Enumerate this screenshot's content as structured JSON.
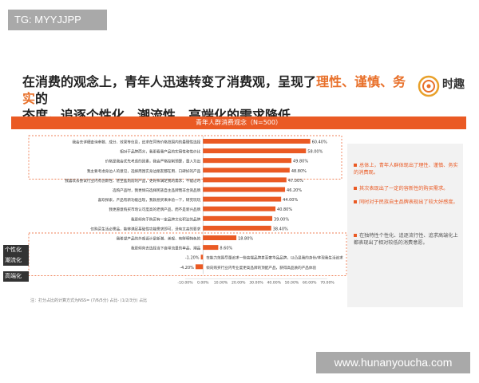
{
  "badge": "TG: MYYJJPP",
  "headline": {
    "part1": "在消费的观念上，青年人迅速转变了消费观，呈现了",
    "highlight": "理性、谨慎、务实",
    "part2": "的",
    "line2": "态度。追逐个性化、潮流性、高端化的需求降低"
  },
  "logo": {
    "text": "时趣"
  },
  "side_notes": [
    "总体上，青年人群体现出了理性、谨慎、务实的消费观。",
    "其次表现出了一定的容新性的购买需求。",
    "同时对于民族自主品牌表现出了较大好感度。",
    "在独特性个性化、追逐流行性、追求高端化上都表现出了相对较低的消费意愿。"
  ],
  "group_labels": {
    "gexing": "个性化",
    "chaoliu": "潮流化",
    "gaoduan": "高端化"
  },
  "footnote": "注：打分占比的计算方式为NSS= (7/6/5分) 占比- (1/2/3分) 占比",
  "watermark": "www.hunanyoucha.com",
  "chart_data": {
    "type": "bar",
    "orientation": "horizontal",
    "title": "青年人群消费观念（N=500）",
    "categories": [
      "我会去详细查询参数、成分、效果等信息，追求在同等价格范围内的最理性选择",
      "相对于品牌而言，我更看重产品的实用性和性价比",
      "价格是我会优先考虑的因素，我会严格控制预算，量入为出",
      "我主要考虑身边人的意见，选择周围实身边朋友都在用、口碑好的产品",
      "我喜欢去尝试行业内有创新性、甚至猛刻前的产品，更好摔满足我的需求，不能过时",
      "选购产品时，我更倾向选择民族自主品牌而非合资品牌",
      "喜欢探索，产品有新功能出现，我就想买来体验一下，研究玩玩",
      "我更愿意购买市场认可度高的老牌产品，而不是新兴品牌",
      "我更倾向于购买有一定品牌文化积淀的品牌",
      "仅购买生活必需品，能够满足基础性功能需求即可，没有太高的要求",
      "我希望产品的外观设计是新潮、美观、有鲜明特色的",
      "我更倾向去选择当下自带流量的单品、潮品",
      "在能力范围尽量追求一些高端品牌甚至奢华品品牌，以凸显我的身份/体现我生活追求",
      "倾向购买行业内专业度更高品牌的顶配产品，获得高品质的产品体验"
    ],
    "values": [
      60.4,
      58.0,
      49.8,
      48.8,
      47.0,
      46.2,
      44.0,
      40.8,
      39.0,
      38.4,
      18.8,
      8.6,
      -1.2,
      -4.2
    ],
    "value_labels": [
      "60.40%",
      "58.00%",
      "49.80%",
      "48.80%",
      "47.00%",
      "46.20%",
      "44.00%",
      "40.80%",
      "39.00%",
      "38.40%",
      "18.80%",
      "8.60%",
      "-1.20%",
      "-4.20%"
    ],
    "xlim": [
      -10,
      70
    ],
    "xticks": [
      "-10.00%",
      "0.00%",
      "10.00%",
      "20.00%",
      "30.00%",
      "40.00%",
      "50.00%",
      "60.00%",
      "70.00%"
    ],
    "xtick_values": [
      -10,
      0,
      10,
      20,
      30,
      40,
      50,
      60,
      70
    ],
    "bar_color": "#ea5a24",
    "negative_bar_color": "#ea5a24"
  }
}
